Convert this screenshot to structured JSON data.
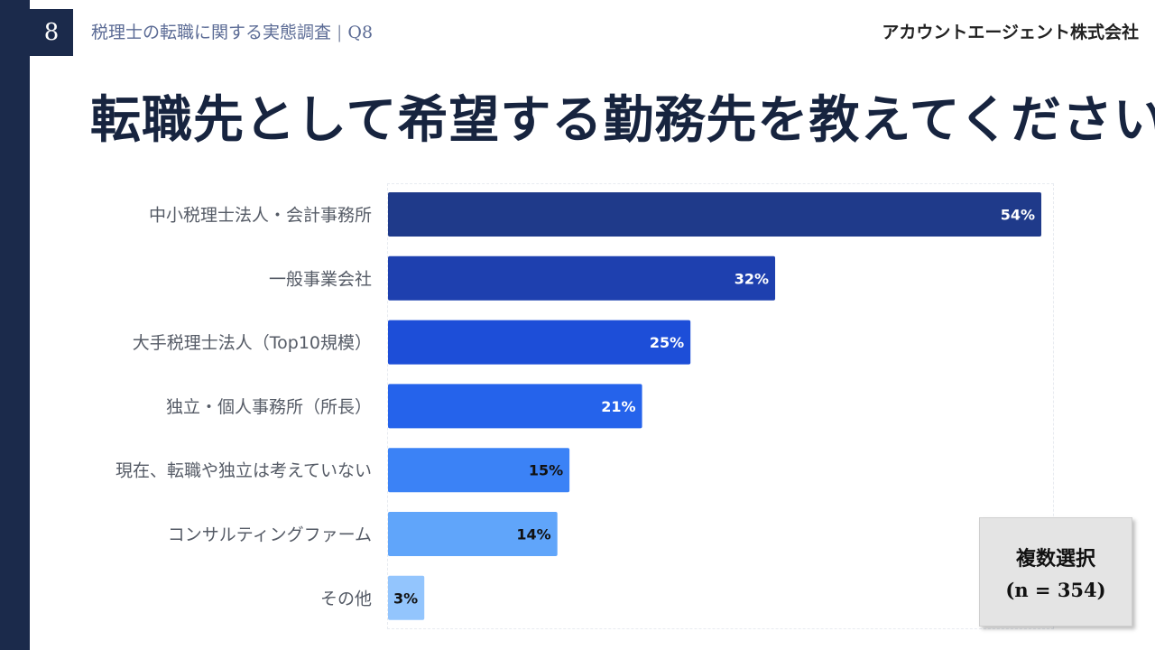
{
  "header": {
    "page_number": "8",
    "breadcrumb_title": "税理士の転職に関する実態調査",
    "breadcrumb_separator": "|",
    "breadcrumb_question": "Q8",
    "company": "アカウントエージェント株式会社"
  },
  "title": "転職先として希望する勤務先を教えてください",
  "note": {
    "line1": "複数選択",
    "line2": "(n = 354)"
  },
  "chart_data": {
    "type": "bar",
    "orientation": "horizontal",
    "categories": [
      "中小税理士法人・会計事務所",
      "一般事業会社",
      "大手税理士法人（Top10規模）",
      "独立・個人事務所（所長）",
      "現在、転職や独立は考えていない",
      "コンサルティングファーム",
      "その他"
    ],
    "values": [
      54,
      32,
      25,
      21,
      15,
      14,
      3
    ],
    "value_labels": [
      "54%",
      "32%",
      "25%",
      "21%",
      "15%",
      "14%",
      "3%"
    ],
    "bar_colors": [
      "#1f3a8a",
      "#1e40af",
      "#1d4ed8",
      "#2563eb",
      "#3b82f6",
      "#60a5fa",
      "#93c5fd"
    ],
    "label_colors": [
      "#ffffff",
      "#ffffff",
      "#ffffff",
      "#ffffff",
      "#111111",
      "#111111",
      "#111111"
    ],
    "xlim": [
      0,
      54
    ],
    "grid": false,
    "legend": "none"
  }
}
